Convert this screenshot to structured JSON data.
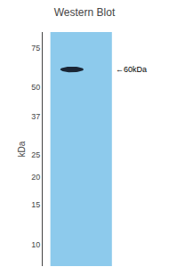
{
  "chart_data": {
    "type": "blot",
    "title": "Western Blot",
    "ylabel": "kDa",
    "categories": [
      null
    ],
    "series": [
      {
        "color": "#1a2535",
        "values": [
          60
        ],
        "band_height": [
          3.5
        ]
      }
    ],
    "annotations": [
      "←60kDa"
    ],
    "color": "#8DCAEC",
    "ylim": [
      8,
      88
    ],
    "yticks": [
      75,
      50,
      37,
      25,
      20,
      15,
      10
    ],
    "log": "y",
    "grid": false,
    "tick_labels": "y"
  }
}
